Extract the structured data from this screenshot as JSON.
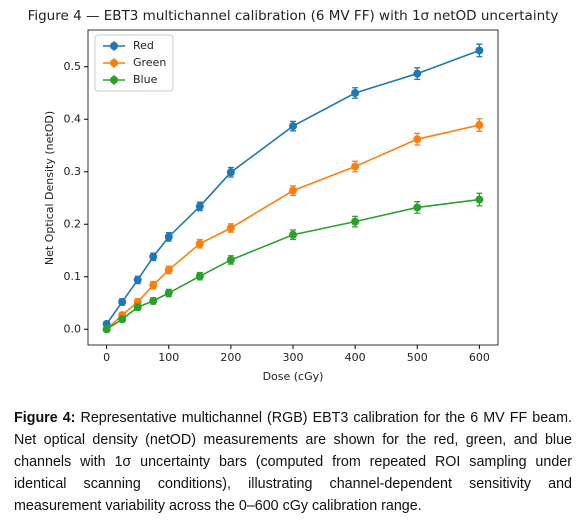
{
  "chart_data": {
    "type": "line",
    "title": "Figure 4 — EBT3 multichannel calibration (6 MV FF) with 1σ netOD uncertainty",
    "x_label": "Dose (cGy)",
    "y_label": "Net Optical Density (netOD)",
    "x": [
      0,
      25,
      50,
      75,
      100,
      150,
      200,
      300,
      400,
      500,
      600
    ],
    "series": [
      {
        "name": "Red",
        "color": "#1f77b4",
        "values": [
          0.01,
          0.052,
          0.094,
          0.138,
          0.176,
          0.234,
          0.299,
          0.387,
          0.45,
          0.487,
          0.531
        ],
        "errors": [
          0.005,
          0.006,
          0.007,
          0.007,
          0.008,
          0.008,
          0.009,
          0.009,
          0.01,
          0.011,
          0.012
        ]
      },
      {
        "name": "Green",
        "color": "#ff7f0e",
        "values": [
          0.0,
          0.027,
          0.052,
          0.084,
          0.113,
          0.163,
          0.193,
          0.264,
          0.31,
          0.362,
          0.389
        ],
        "errors": [
          0.005,
          0.005,
          0.006,
          0.007,
          0.007,
          0.008,
          0.008,
          0.009,
          0.01,
          0.011,
          0.012
        ]
      },
      {
        "name": "Blue",
        "color": "#2ca02c",
        "values": [
          0.0,
          0.019,
          0.042,
          0.054,
          0.069,
          0.101,
          0.132,
          0.18,
          0.205,
          0.232,
          0.247
        ],
        "errors": [
          0.005,
          0.005,
          0.006,
          0.006,
          0.007,
          0.007,
          0.008,
          0.009,
          0.01,
          0.011,
          0.012
        ]
      }
    ],
    "xlim": [
      -30,
      630
    ],
    "xticks": [
      0,
      100,
      200,
      300,
      400,
      500,
      600
    ],
    "ylim": [
      -0.03,
      0.57
    ],
    "yticks": [
      {
        "value": 0,
        "label": "0.0"
      },
      0.1,
      0.2,
      0.3,
      0.4,
      0.5
    ],
    "legend": "upper left"
  },
  "caption": {
    "label": "Figure 4:",
    "text": "Representative multichannel (RGB) EBT3 calibration for the 6 MV FF beam. Net optical density (netOD) measurements are shown for the red, green, and blue channels with 1σ uncertainty bars (computed from repeated ROI sampling under identical scanning conditions), illustrating channel-dependent sensitivity and measurement variability across the 0–600 cGy calibration range."
  }
}
